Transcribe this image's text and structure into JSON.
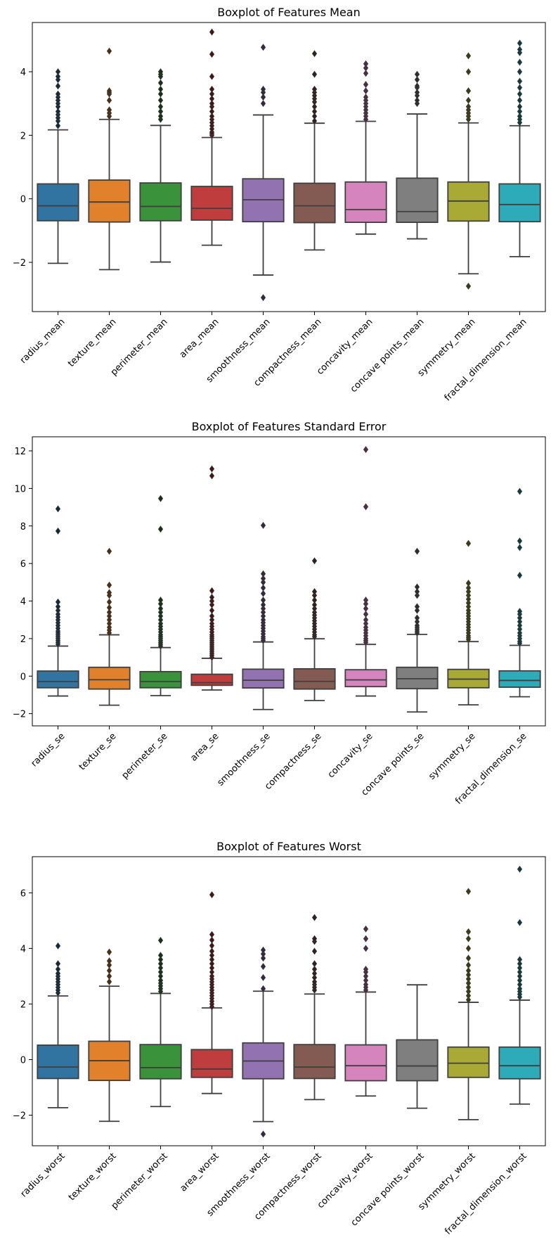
{
  "chart_data": [
    {
      "type": "box",
      "title": "Boxplot of Features Mean",
      "ylim": [
        -3.55,
        5.55
      ],
      "yticks": [
        -2,
        0,
        2,
        4
      ],
      "categories": [
        "radius_mean",
        "texture_mean",
        "perimeter_mean",
        "area_mean",
        "smoothness_mean",
        "compactness_mean",
        "concavity_mean",
        "concave points_mean",
        "symmetry_mean",
        "fractal_dimension_mean"
      ],
      "colors": [
        "#3274a1",
        "#e1812c",
        "#3a923a",
        "#c03d3e",
        "#9372b2",
        "#845b53",
        "#d684bd",
        "#7f7f7f",
        "#a9aa35",
        "#2eabb8"
      ],
      "boxes": [
        {
          "whislo": -2.03,
          "q1": -0.69,
          "med": -0.22,
          "q3": 0.47,
          "whishi": 2.17,
          "fliers": [
            2.3,
            2.45,
            2.55,
            2.65,
            2.75,
            2.9,
            3.0,
            3.1,
            3.2,
            3.3,
            3.55,
            3.75,
            3.85,
            4.0
          ]
        },
        {
          "whislo": -2.23,
          "q1": -0.73,
          "med": -0.1,
          "q3": 0.59,
          "whishi": 2.5,
          "fliers": [
            2.6,
            2.7,
            2.8,
            3.1,
            3.3,
            3.35,
            3.4,
            4.65
          ]
        },
        {
          "whislo": -1.99,
          "q1": -0.69,
          "med": -0.24,
          "q3": 0.5,
          "whishi": 2.31,
          "fliers": [
            2.5,
            2.6,
            2.75,
            2.9,
            3.1,
            3.3,
            3.45,
            3.65,
            3.85,
            3.92,
            4.0
          ]
        },
        {
          "whislo": -1.46,
          "q1": -0.67,
          "med": -0.3,
          "q3": 0.39,
          "whishi": 1.93,
          "fliers": [
            2.0,
            2.05,
            2.1,
            2.2,
            2.3,
            2.4,
            2.5,
            2.6,
            2.75,
            2.9,
            3.0,
            3.15,
            3.3,
            3.45,
            3.85,
            4.55,
            5.25
          ]
        },
        {
          "whislo": -2.4,
          "q1": -0.72,
          "med": -0.03,
          "q3": 0.63,
          "whishi": 2.64,
          "fliers": [
            -3.11,
            3.0,
            3.2,
            3.35,
            3.45,
            4.77
          ]
        },
        {
          "whislo": -1.61,
          "q1": -0.75,
          "med": -0.22,
          "q3": 0.49,
          "whishi": 2.38,
          "fliers": [
            2.45,
            2.6,
            2.75,
            2.9,
            3.05,
            3.15,
            3.25,
            3.35,
            3.45,
            3.92,
            4.57
          ]
        },
        {
          "whislo": -1.11,
          "q1": -0.74,
          "med": -0.34,
          "q3": 0.53,
          "whishi": 2.44,
          "fliers": [
            2.5,
            2.6,
            2.7,
            2.8,
            2.9,
            3.0,
            3.1,
            3.2,
            3.4,
            3.6,
            3.95,
            4.12,
            4.25
          ]
        },
        {
          "whislo": -1.26,
          "q1": -0.74,
          "med": -0.4,
          "q3": 0.65,
          "whishi": 2.67,
          "fliers": [
            3.0,
            3.1,
            3.25,
            3.35,
            3.5,
            3.55,
            3.75,
            3.92
          ]
        },
        {
          "whislo": -2.36,
          "q1": -0.7,
          "med": -0.07,
          "q3": 0.53,
          "whishi": 2.39,
          "fliers": [
            -2.75,
            2.5,
            2.6,
            2.7,
            2.8,
            2.9,
            3.1,
            3.4,
            4.0,
            4.5
          ]
        },
        {
          "whislo": -1.82,
          "q1": -0.72,
          "med": -0.18,
          "q3": 0.47,
          "whishi": 2.3,
          "fliers": [
            2.4,
            2.5,
            2.6,
            2.75,
            2.9,
            3.1,
            3.3,
            3.5,
            3.7,
            4.0,
            4.3,
            4.6,
            4.7,
            4.9
          ]
        }
      ]
    },
    {
      "type": "box",
      "title": "Boxplot of Features Standard Error",
      "ylim": [
        -2.65,
        12.75
      ],
      "yticks": [
        -2,
        0,
        2,
        4,
        6,
        8,
        10,
        12
      ],
      "categories": [
        "radius_se",
        "texture_se",
        "perimeter_se",
        "area_se",
        "smoothness_se",
        "compactness_se",
        "concavity_se",
        "concave points_se",
        "symmetry_se",
        "fractal_dimension_se"
      ],
      "colors": [
        "#3274a1",
        "#e1812c",
        "#3a923a",
        "#c03d3e",
        "#9372b2",
        "#845b53",
        "#d684bd",
        "#7f7f7f",
        "#a9aa35",
        "#2eabb8"
      ],
      "boxes": [
        {
          "whislo": -1.06,
          "q1": -0.62,
          "med": -0.29,
          "q3": 0.27,
          "whishi": 1.6,
          "fliers": [
            1.7,
            1.8,
            1.9,
            2.0,
            2.1,
            2.2,
            2.3,
            2.4,
            2.55,
            2.7,
            2.85,
            3.0,
            3.15,
            3.3,
            3.5,
            3.7,
            3.95,
            7.73,
            8.91
          ]
        },
        {
          "whislo": -1.55,
          "q1": -0.69,
          "med": -0.19,
          "q3": 0.47,
          "whishi": 2.2,
          "fliers": [
            2.3,
            2.45,
            2.6,
            2.8,
            3.0,
            3.2,
            3.4,
            3.65,
            3.95,
            4.3,
            4.45,
            4.85,
            6.65
          ]
        },
        {
          "whislo": -1.04,
          "q1": -0.62,
          "med": -0.29,
          "q3": 0.24,
          "whishi": 1.52,
          "fliers": [
            1.6,
            1.7,
            1.8,
            1.9,
            2.0,
            2.1,
            2.2,
            2.35,
            2.5,
            2.65,
            2.8,
            3.0,
            3.2,
            3.4,
            3.6,
            3.85,
            4.05,
            7.83,
            9.46
          ]
        },
        {
          "whislo": -0.74,
          "q1": -0.49,
          "med": -0.35,
          "q3": 0.1,
          "whishi": 0.95,
          "fliers": [
            1.0,
            1.1,
            1.2,
            1.3,
            1.4,
            1.5,
            1.6,
            1.7,
            1.8,
            1.9,
            2.0,
            2.1,
            2.2,
            2.35,
            2.5,
            2.65,
            2.8,
            3.0,
            3.2,
            3.5,
            3.8,
            4.0,
            4.2,
            4.55,
            10.67,
            11.04
          ]
        },
        {
          "whislo": -1.78,
          "q1": -0.63,
          "med": -0.22,
          "q3": 0.37,
          "whishi": 1.82,
          "fliers": [
            1.9,
            2.0,
            2.1,
            2.25,
            2.4,
            2.55,
            2.7,
            2.85,
            3.0,
            3.2,
            3.4,
            3.6,
            3.8,
            4.05,
            4.4,
            4.7,
            5.0,
            5.2,
            5.45,
            8.03
          ]
        },
        {
          "whislo": -1.3,
          "q1": -0.69,
          "med": -0.28,
          "q3": 0.39,
          "whishi": 1.99,
          "fliers": [
            2.1,
            2.2,
            2.35,
            2.5,
            2.65,
            2.8,
            2.95,
            3.1,
            3.25,
            3.4,
            3.6,
            3.8,
            4.05,
            4.3,
            4.5,
            6.14
          ]
        },
        {
          "whislo": -1.06,
          "q1": -0.56,
          "med": -0.2,
          "q3": 0.34,
          "whishi": 1.69,
          "fliers": [
            1.8,
            1.9,
            2.0,
            2.15,
            2.3,
            2.45,
            2.6,
            2.8,
            3.0,
            3.3,
            3.6,
            3.85,
            4.05,
            9.02,
            12.07
          ]
        },
        {
          "whislo": -1.91,
          "q1": -0.67,
          "med": -0.14,
          "q3": 0.47,
          "whishi": 2.22,
          "fliers": [
            2.3,
            2.4,
            2.5,
            2.6,
            2.7,
            2.9,
            3.1,
            3.5,
            3.7,
            4.3,
            4.5,
            4.75,
            6.65
          ]
        },
        {
          "whislo": -1.53,
          "q1": -0.62,
          "med": -0.16,
          "q3": 0.36,
          "whishi": 1.84,
          "fliers": [
            1.95,
            2.05,
            2.15,
            2.3,
            2.45,
            2.6,
            2.75,
            2.9,
            3.05,
            3.2,
            3.35,
            3.5,
            3.7,
            3.9,
            4.1,
            4.3,
            4.5,
            4.7,
            4.95,
            7.07
          ]
        },
        {
          "whislo": -1.1,
          "q1": -0.59,
          "med": -0.23,
          "q3": 0.28,
          "whishi": 1.64,
          "fliers": [
            1.75,
            1.85,
            2.0,
            2.15,
            2.3,
            2.5,
            2.7,
            2.9,
            3.1,
            3.3,
            3.45,
            5.37,
            6.85,
            7.2,
            9.84
          ]
        }
      ]
    },
    {
      "type": "box",
      "title": "Boxplot of Features Worst",
      "ylim": [
        -3.1,
        7.3
      ],
      "yticks": [
        -2,
        0,
        2,
        4,
        6
      ],
      "categories": [
        "radius_worst",
        "texture_worst",
        "perimeter_worst",
        "area_worst",
        "smoothness_worst",
        "compactness_worst",
        "concavity_worst",
        "concave points_worst",
        "symmetry_worst",
        "fractal_dimension_worst"
      ],
      "colors": [
        "#3274a1",
        "#e1812c",
        "#3a923a",
        "#c03d3e",
        "#9372b2",
        "#845b53",
        "#d684bd",
        "#7f7f7f",
        "#a9aa35",
        "#2eabb8"
      ],
      "boxes": [
        {
          "whislo": -1.73,
          "q1": -0.68,
          "med": -0.27,
          "q3": 0.52,
          "whishi": 2.29,
          "fliers": [
            2.4,
            2.5,
            2.6,
            2.7,
            2.8,
            2.9,
            3.0,
            3.1,
            3.25,
            3.45,
            4.09
          ]
        },
        {
          "whislo": -2.22,
          "q1": -0.75,
          "med": -0.04,
          "q3": 0.66,
          "whishi": 2.64,
          "fliers": [
            2.8,
            3.0,
            3.2,
            3.4,
            3.55,
            3.87
          ]
        },
        {
          "whislo": -1.69,
          "q1": -0.69,
          "med": -0.29,
          "q3": 0.54,
          "whishi": 2.38,
          "fliers": [
            2.45,
            2.55,
            2.65,
            2.75,
            2.85,
            3.0,
            3.15,
            3.3,
            3.45,
            3.6,
            3.75,
            4.29
          ]
        },
        {
          "whislo": -1.22,
          "q1": -0.64,
          "med": -0.34,
          "q3": 0.36,
          "whishi": 1.86,
          "fliers": [
            1.9,
            2.0,
            2.1,
            2.2,
            2.3,
            2.4,
            2.5,
            2.6,
            2.7,
            2.8,
            2.9,
            3.0,
            3.15,
            3.3,
            3.45,
            3.6,
            3.75,
            3.9,
            4.1,
            4.3,
            4.5,
            5.93
          ]
        },
        {
          "whislo": -2.23,
          "q1": -0.69,
          "med": -0.05,
          "q3": 0.6,
          "whishi": 2.46,
          "fliers": [
            -2.68,
            2.55,
            2.95,
            3.35,
            3.65,
            3.8,
            3.94
          ]
        },
        {
          "whislo": -1.44,
          "q1": -0.68,
          "med": -0.27,
          "q3": 0.54,
          "whishi": 2.36,
          "fliers": [
            2.5,
            2.6,
            2.7,
            2.8,
            2.95,
            3.1,
            3.25,
            3.45,
            3.9,
            4.25,
            4.35,
            5.11
          ]
        },
        {
          "whislo": -1.31,
          "q1": -0.76,
          "med": -0.22,
          "q3": 0.53,
          "whishi": 2.43,
          "fliers": [
            2.5,
            2.6,
            2.7,
            2.85,
            3.0,
            3.15,
            3.25,
            4.0,
            4.35,
            4.7
          ]
        },
        {
          "whislo": -1.75,
          "q1": -0.76,
          "med": -0.23,
          "q3": 0.71,
          "whishi": 2.69,
          "fliers": []
        },
        {
          "whislo": -2.16,
          "q1": -0.64,
          "med": -0.13,
          "q3": 0.45,
          "whishi": 2.06,
          "fliers": [
            2.15,
            2.3,
            2.45,
            2.6,
            2.75,
            2.9,
            3.05,
            3.2,
            3.4,
            3.65,
            4.0,
            4.35,
            4.6,
            6.05
          ]
        },
        {
          "whislo": -1.6,
          "q1": -0.69,
          "med": -0.22,
          "q3": 0.45,
          "whishi": 2.14,
          "fliers": [
            2.25,
            2.35,
            2.45,
            2.55,
            2.7,
            2.85,
            3.0,
            3.15,
            3.3,
            3.45,
            3.6,
            4.93,
            6.85
          ]
        }
      ]
    }
  ]
}
